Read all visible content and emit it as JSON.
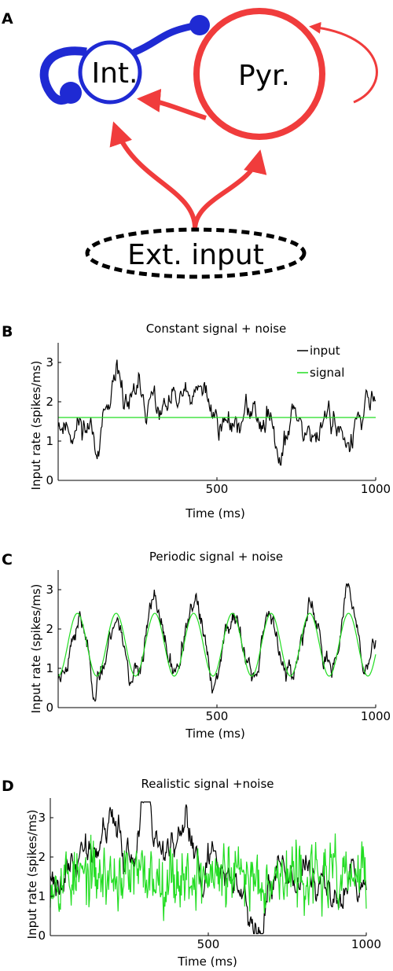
{
  "panel_a": {
    "letter": "A",
    "nodes": {
      "interneuron": "Int.",
      "pyramidal": "Pyr.",
      "external": "Ext. input"
    },
    "colors": {
      "interneuron": "#1f2ad3",
      "pyramidal": "#f03c3c",
      "external": "#000000"
    }
  },
  "chart_data": [
    {
      "panel": "B",
      "type": "line",
      "title": "Constant signal + noise",
      "xlabel": "Time (ms)",
      "ylabel": "Input rate (spikes/ms)",
      "xlim": [
        0,
        1000
      ],
      "ylim": [
        0,
        3.5
      ],
      "xticks": [
        500,
        1000
      ],
      "yticks": [
        0,
        1,
        2,
        3
      ],
      "legend": {
        "placement": "top-right",
        "entries": [
          "input",
          "signal"
        ]
      },
      "series": [
        {
          "name": "input",
          "color": "#000000",
          "kind": "noisy",
          "base": "constant",
          "level": 1.6,
          "amplitude": 0.45,
          "seed": 11,
          "n": 400,
          "style": "slow"
        },
        {
          "name": "signal",
          "color": "#22dd22",
          "kind": "constant",
          "level": 1.6
        }
      ]
    },
    {
      "panel": "C",
      "type": "line",
      "title": "Periodic signal + noise",
      "xlabel": "Time (ms)",
      "ylabel": "Input rate (spikes/ms)",
      "xlim": [
        0,
        1000
      ],
      "ylim": [
        0,
        3.5
      ],
      "xticks": [
        500,
        1000
      ],
      "yticks": [
        0,
        1,
        2,
        3
      ],
      "legend": null,
      "series": [
        {
          "kind": "noisy",
          "color": "#000000",
          "base": "sine",
          "mean": 1.6,
          "amp": 0.8,
          "period_ms": 122,
          "phase_ms": 30,
          "amplitude": 0.3,
          "seed": 23,
          "n": 500,
          "style": "slow"
        },
        {
          "kind": "sine",
          "color": "#22dd22",
          "mean": 1.6,
          "amp": 0.8,
          "period_ms": 122,
          "phase_ms": 30
        }
      ]
    },
    {
      "panel": "D",
      "type": "line",
      "title": "Realistic signal +noise",
      "xlabel": "Time (ms)",
      "ylabel": "Input rate (spikes/ms)",
      "xlim": [
        0,
        1000
      ],
      "ylim": [
        0,
        3.5
      ],
      "xticks": [
        500,
        1000
      ],
      "yticks": [
        0,
        1,
        2,
        3
      ],
      "legend": null,
      "series": [
        {
          "kind": "noisy",
          "color": "#000000",
          "base": "wander",
          "level": 1.75,
          "amplitude": 0.55,
          "seed": 37,
          "n": 450,
          "style": "slow"
        },
        {
          "kind": "noisy",
          "color": "#22dd22",
          "base": "constant",
          "level": 1.5,
          "amplitude": 0.4,
          "seed": 53,
          "n": 500,
          "style": "fast"
        }
      ]
    }
  ]
}
